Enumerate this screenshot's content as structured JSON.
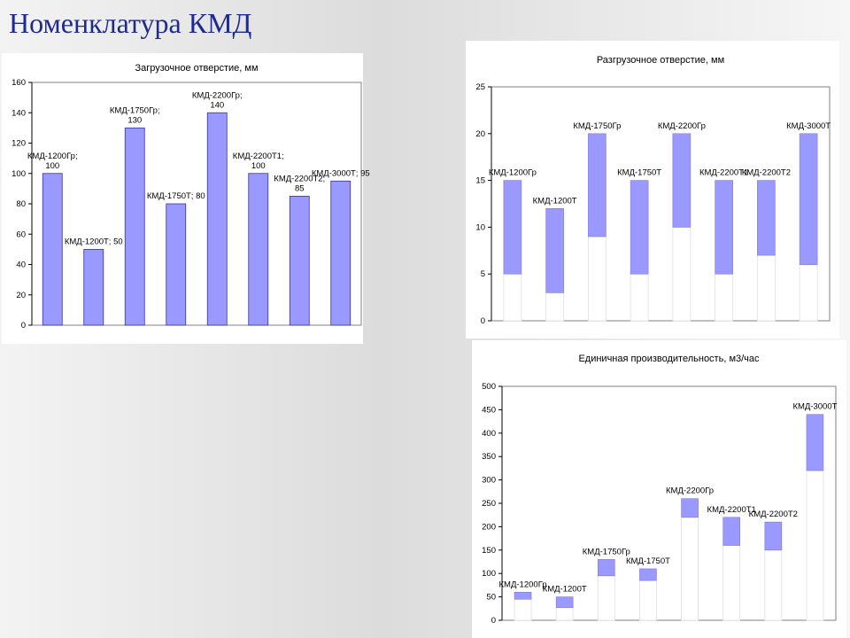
{
  "slide": {
    "title": "Номенклатура КМД"
  },
  "chart_data": [
    {
      "id": "loading",
      "type": "bar",
      "title": "Загрузочное отверстие, мм",
      "ylim": [
        0,
        160
      ],
      "yticks": [
        0,
        20,
        40,
        60,
        80,
        100,
        120,
        140,
        160
      ],
      "bar_color": "#9999ff",
      "categories": [
        "КМД-1200Гр",
        "КМД-1200Т",
        "КМД-1750Гр",
        "КМД-1750Т",
        "КМД-2200Гр",
        "КМД-2200Т1",
        "КМД-2200Т2",
        "КМД-3000Т"
      ],
      "values": [
        100,
        50,
        130,
        80,
        140,
        100,
        85,
        95
      ],
      "data_labels": [
        [
          "КМД-1200Гр;",
          "100"
        ],
        [
          "КМД-1200Т;  50"
        ],
        [
          "КМД-1750Гр;",
          "130"
        ],
        [
          "КМД-1750Т;  80"
        ],
        [
          "КМД-2200Гр;",
          "140"
        ],
        [
          "КМД-2200Т1;",
          "100"
        ],
        [
          "КМД-2200Т2;",
          "85"
        ],
        [
          "КМД-3000Т;  95"
        ]
      ]
    },
    {
      "id": "discharge",
      "type": "bar",
      "stacked": "floating",
      "title": "Разгрузочное отверстие, мм",
      "ylim": [
        0,
        25
      ],
      "yticks": [
        0,
        5,
        10,
        15,
        20,
        25
      ],
      "bar_color": "#9999ff",
      "categories": [
        "КМД-1200Гр",
        "КМД-1200Т",
        "КМД-1750Гр",
        "КМД-1750Т",
        "КМД-2200Гр",
        "КМД-2200Т1",
        "КМД-2200Т2",
        "КМД-3000Т"
      ],
      "low": [
        5,
        3,
        9,
        5,
        10,
        5,
        7,
        6
      ],
      "high": [
        15,
        12,
        20,
        15,
        20,
        15,
        15,
        20
      ],
      "data_labels": [
        "КМД-1200Гр",
        "КМД-1200Т",
        "КМД-1750Гр",
        "КМД-1750Т",
        "КМД-2200Гр",
        "КМД-2200Т1",
        "КМД-2200Т2",
        "КМД-3000Т"
      ]
    },
    {
      "id": "capacity",
      "type": "bar",
      "stacked": "floating",
      "title": "Единичная производительность, м3/час",
      "ylim": [
        0,
        500
      ],
      "yticks": [
        0,
        50,
        100,
        150,
        200,
        250,
        300,
        350,
        400,
        450,
        500
      ],
      "bar_color": "#9999ff",
      "categories": [
        "КМД-1200Гр",
        "КМД-1200Т",
        "КМД-1750Гр",
        "КМД-1750Т",
        "КМД-2200Гр",
        "КМД-2200Т1",
        "КМД-2200Т2",
        "КМД-3000Т"
      ],
      "low": [
        45,
        27,
        95,
        85,
        220,
        160,
        150,
        320
      ],
      "high": [
        60,
        50,
        130,
        110,
        260,
        220,
        210,
        440
      ],
      "data_labels": [
        "КМД-1200Гр",
        "КМД-1200Т",
        "КМД-1750Гр",
        "КМД-1750Т",
        "КМД-2200Гр",
        "КМД-2200Т1",
        "КМД-2200Т2",
        "КМД-3000Т"
      ]
    }
  ]
}
